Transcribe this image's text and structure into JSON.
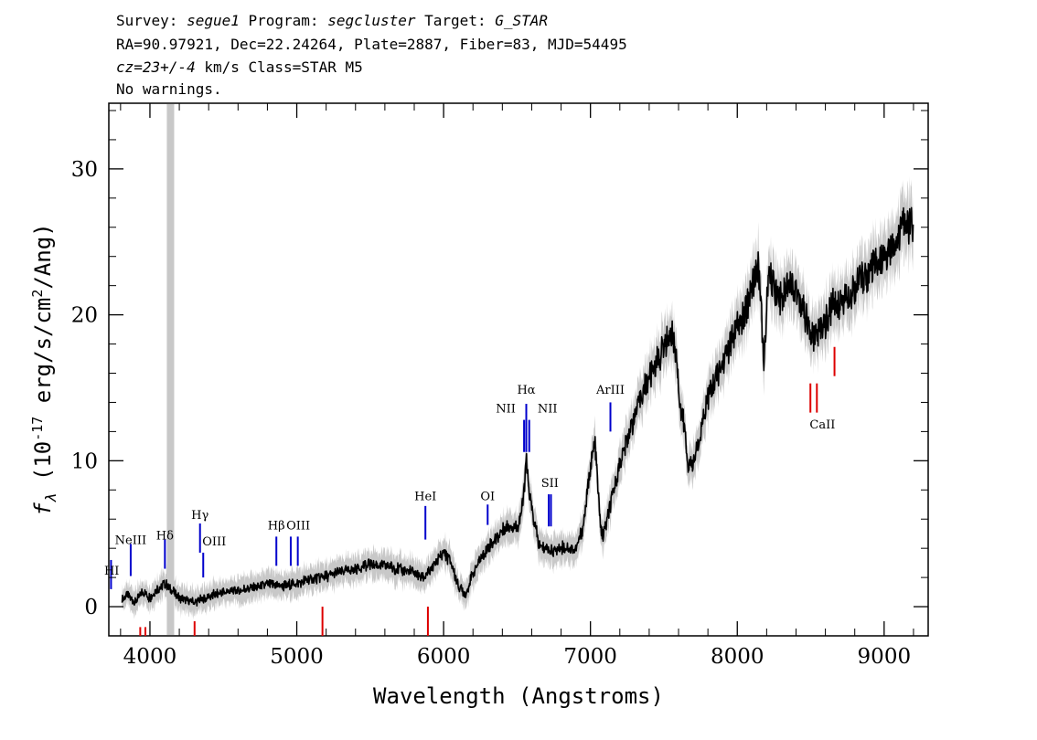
{
  "header": {
    "line1": {
      "p1": "Survey: ",
      "survey": "segue1",
      "p2": " Program: ",
      "program": "segcluster",
      "p3": " Target: ",
      "target": "G_STAR"
    },
    "line2": "RA=90.97921, Dec=22.24264, Plate=2887, Fiber=83, MJD=54495",
    "line3": {
      "cz": "cz=23+/-4",
      "rest": " km/s Class=STAR M5"
    },
    "line4": "No warnings."
  },
  "chart_data": {
    "type": "line",
    "xlabel": "Wavelength (Angstroms)",
    "ylabel": {
      "f": "f",
      "sub": "λ",
      "p1": " (10",
      "exp": "-17",
      "p2": " erg/s/cm",
      "exp2": "2",
      "p3": "/Ang)"
    },
    "xlim": [
      3720,
      9300
    ],
    "ylim": [
      -2,
      34.5
    ],
    "x_ticks": [
      4000,
      5000,
      6000,
      7000,
      8000,
      9000
    ],
    "y_ticks": [
      0,
      10,
      20,
      30
    ],
    "masked_band": [
      4115,
      4165
    ],
    "colors": {
      "flux": "#000000",
      "error_band": "#c8c8c8",
      "emission": "#0000cc",
      "absorption": "#dd0000"
    },
    "series": [
      {
        "x": [
          3810,
          3850,
          3900,
          3950,
          4000,
          4050,
          4100,
          4200,
          4300,
          4400,
          4500,
          4600,
          4700,
          4800,
          4900,
          5000,
          5100,
          5200,
          5300,
          5400,
          5500,
          5600,
          5700,
          5800,
          5850,
          5900,
          5950,
          6000,
          6050,
          6100,
          6150,
          6200,
          6250,
          6300,
          6350,
          6400,
          6450,
          6500,
          6540,
          6563,
          6580,
          6620,
          6650,
          6700,
          6750,
          6800,
          6850,
          6900,
          6950,
          7000,
          7030,
          7045,
          7060,
          7080,
          7100,
          7150,
          7200,
          7250,
          7300,
          7350,
          7400,
          7450,
          7500,
          7550,
          7590,
          7610,
          7640,
          7660,
          7680,
          7700,
          7750,
          7800,
          7850,
          7900,
          7950,
          8000,
          8050,
          8100,
          8150,
          8180,
          8195,
          8210,
          8250,
          8300,
          8350,
          8400,
          8450,
          8500,
          8550,
          8600,
          8650,
          8700,
          8750,
          8800,
          8850,
          8900,
          8950,
          9000,
          9050,
          9100,
          9150,
          9200
        ],
        "y": [
          0.5,
          0.8,
          0.3,
          1.0,
          0.6,
          1.2,
          1.6,
          0.6,
          0.3,
          0.7,
          1.0,
          1.1,
          1.3,
          1.5,
          1.4,
          1.6,
          1.9,
          2.1,
          2.4,
          2.6,
          2.9,
          2.8,
          2.6,
          2.3,
          2.0,
          2.3,
          3.1,
          3.8,
          3.0,
          1.4,
          0.9,
          2.3,
          3.3,
          4.0,
          4.6,
          5.2,
          5.6,
          5.4,
          7.0,
          10.0,
          8.0,
          5.6,
          4.2,
          4.0,
          3.8,
          4.1,
          4.0,
          3.9,
          5.5,
          9.5,
          11.3,
          9.2,
          6.6,
          4.7,
          5.4,
          7.5,
          9.8,
          11.5,
          13.0,
          14.6,
          15.7,
          16.8,
          17.8,
          18.8,
          17.0,
          13.5,
          12.5,
          10.0,
          9.5,
          9.7,
          12.0,
          14.5,
          15.5,
          16.8,
          18.0,
          19.0,
          20.0,
          22.2,
          23.2,
          16.5,
          19.5,
          22.5,
          22.0,
          21.2,
          22.5,
          21.7,
          20.5,
          18.5,
          18.8,
          19.5,
          20.5,
          21.0,
          21.5,
          22.0,
          22.5,
          23.0,
          23.3,
          23.8,
          24.5,
          25.5,
          26.5,
          26.0
        ]
      }
    ],
    "line_markers": [
      {
        "label": "HI",
        "x": 3735,
        "y": 2.2,
        "color": "emission",
        "y1": 1.2,
        "y2": 3.2
      },
      {
        "label": "NeIII",
        "x": 3869,
        "y": 4.3,
        "color": "emission",
        "y1": 2.1,
        "y2": 4.3
      },
      {
        "label": "Hδ",
        "x": 4102,
        "y": 4.6,
        "color": "emission",
        "y1": 2.6,
        "y2": 4.6
      },
      {
        "label": "Hγ",
        "x": 4341,
        "y": 6.0,
        "color": "emission",
        "y1": 3.7,
        "y2": 5.7
      },
      {
        "label": "OIII",
        "x": 4363,
        "y": 4.2,
        "color": "emission",
        "y1": 2.0,
        "y2": 3.7
      },
      {
        "label": "Hβ",
        "x": 4861,
        "y": 5.3,
        "color": "emission",
        "y1": 2.8,
        "y2": 4.8
      },
      {
        "label": "OIII",
        "x": 4959,
        "y": 5.3,
        "color": "emission",
        "y1": 2.8,
        "y2": 4.8
      },
      {
        "label": "OIII",
        "x": 5007,
        "y": 5.3,
        "color": "emission",
        "y1": 2.8,
        "y2": 4.8
      },
      {
        "label": "HeI",
        "x": 5876,
        "y": 7.3,
        "color": "emission",
        "y1": 4.6,
        "y2": 6.9
      },
      {
        "label": "OI",
        "x": 6300,
        "y": 7.3,
        "color": "emission",
        "y1": 5.6,
        "y2": 7.0
      },
      {
        "label": "NII",
        "x": 6548,
        "y": 13.3,
        "color": "emission",
        "y1": 10.6,
        "y2": 12.8
      },
      {
        "label": "Hα",
        "x": 6563,
        "y": 14.6,
        "color": "emission",
        "y1": 10.6,
        "y2": 13.9
      },
      {
        "label": "NII",
        "x": 6583,
        "y": 13.3,
        "color": "emission",
        "y1": 10.6,
        "y2": 12.8
      },
      {
        "label": "SII",
        "x": 6716,
        "y": 8.2,
        "color": "emission",
        "y1": 5.5,
        "y2": 7.7
      },
      {
        "label": "SII",
        "x": 6731,
        "y": 8.2,
        "color": "emission",
        "y1": 5.5,
        "y2": 7.7
      },
      {
        "label": "ArIII",
        "x": 7136,
        "y": 14.6,
        "color": "emission",
        "y1": 12.0,
        "y2": 14.0
      },
      {
        "label": "CaII",
        "x": 8498,
        "y": 12.2,
        "color": "absorption",
        "y1": 13.3,
        "y2": 15.3
      },
      {
        "label": "CaII",
        "x": 8542,
        "y": 12.2,
        "color": "absorption",
        "y1": 13.3,
        "y2": 15.3
      },
      {
        "label": "CaII",
        "x": 8662,
        "y": 12.2,
        "color": "absorption",
        "y1": 15.8,
        "y2": 17.8
      },
      {
        "label": "",
        "x": 3934,
        "y": -2,
        "color": "absorption",
        "y1": -2,
        "y2": -1.4
      },
      {
        "label": "",
        "x": 3969,
        "y": -2,
        "color": "absorption",
        "y1": -2,
        "y2": -1.4
      },
      {
        "label": "",
        "x": 4304,
        "y": -2,
        "color": "absorption",
        "y1": -2,
        "y2": -1.0
      },
      {
        "label": "",
        "x": 5175,
        "y": -2,
        "color": "absorption",
        "y1": -2,
        "y2": 0.0
      },
      {
        "label": "",
        "x": 5893,
        "y": -2,
        "color": "absorption",
        "y1": -2,
        "y2": 0.0
      }
    ]
  }
}
